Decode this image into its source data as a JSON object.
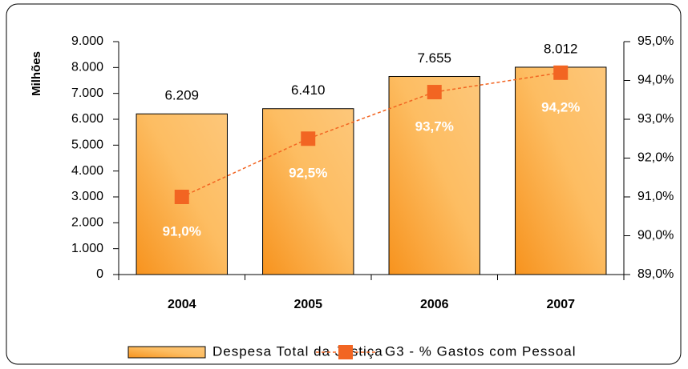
{
  "chart_data": {
    "type": "bar",
    "y_label": "Milhões",
    "categories": [
      "2004",
      "2005",
      "2006",
      "2007"
    ],
    "series": [
      {
        "name": "Despesa Total da Justiça",
        "type": "bar",
        "color": "#f7931e",
        "values": [
          6209,
          6410,
          7655,
          8012
        ],
        "value_labels": [
          "6.209",
          "6.410",
          "7.655",
          "8.012"
        ]
      },
      {
        "name": "G3 - % Gastos com Pessoal",
        "type": "line",
        "axis": "y2",
        "color": "#f26522",
        "values": [
          91.0,
          92.5,
          93.7,
          94.2
        ],
        "value_labels": [
          "91,0%",
          "92,5%",
          "93,7%",
          "94,2%"
        ]
      }
    ],
    "ylim": [
      0,
      9000
    ],
    "yticks": [
      0,
      {
        "value": 1000,
        "label": "1.000"
      },
      {
        "value": 2000,
        "label": "2.000"
      },
      {
        "value": 3000,
        "label": "3.000"
      },
      {
        "value": 4000,
        "label": "4.000"
      },
      {
        "value": 5000,
        "label": "5.000"
      },
      {
        "value": 6000,
        "label": "6.000"
      },
      {
        "value": 7000,
        "label": "7.000"
      },
      {
        "value": 8000,
        "label": "8.000"
      },
      {
        "value": 9000,
        "label": "9.000"
      }
    ],
    "y2lim": [
      89,
      95
    ],
    "y2ticks": [
      {
        "value": 89,
        "label": "89,0%"
      },
      {
        "value": 90,
        "label": "90,0%"
      },
      {
        "value": 91,
        "label": "91,0%"
      },
      {
        "value": 92,
        "label": "92,0%"
      },
      {
        "value": 93,
        "label": "93,0%"
      },
      {
        "value": 94,
        "label": "94,0%"
      },
      {
        "value": 95,
        "label": "95,0%"
      }
    ],
    "grid": false,
    "legend": "bottom"
  }
}
